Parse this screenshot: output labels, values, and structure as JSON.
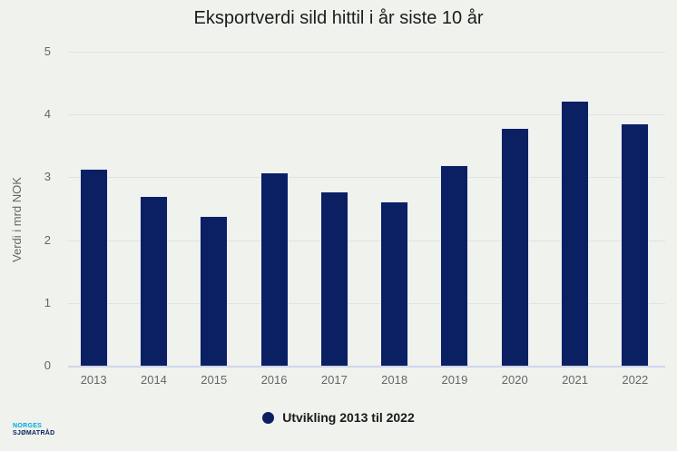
{
  "chart_data": {
    "type": "bar",
    "title": "Eksportverdi sild hittil i år siste 10 år",
    "categories": [
      "2013",
      "2014",
      "2015",
      "2016",
      "2017",
      "2018",
      "2019",
      "2020",
      "2021",
      "2022"
    ],
    "values": [
      3.13,
      2.7,
      2.38,
      3.08,
      2.78,
      2.61,
      3.19,
      3.79,
      4.22,
      3.86
    ],
    "xlabel": "",
    "ylabel": "Verdi i mrd NOK",
    "ylim": [
      0,
      5
    ],
    "yticks": [
      0,
      1,
      2,
      3,
      4,
      5
    ],
    "grid": true,
    "legend": {
      "label": "Utvikling 2013 til 2022",
      "position": "bottom"
    }
  },
  "colors": {
    "background": "#f0f2ee",
    "bar": "#0b2063",
    "gridline": "#e2e3e0",
    "baseline": "#cfd6ec",
    "tick_text": "#666666",
    "title_text": "#1c1c1c",
    "legend_text": "#1a1a1a",
    "logo_primary": "#00a7e1",
    "logo_secondary": "#00205b"
  },
  "logo": {
    "line1": "NORGES",
    "line2": "SJØMATRÅD"
  }
}
